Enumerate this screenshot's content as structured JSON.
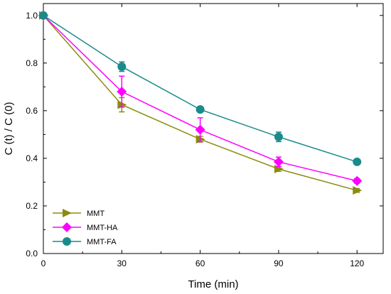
{
  "chart_data": {
    "type": "line",
    "title": "",
    "xlabel": "Time (min)",
    "ylabel": "C (t) / C (0)",
    "x": [
      0,
      30,
      60,
      90,
      120
    ],
    "xlim": [
      0,
      130
    ],
    "ylim": [
      0.0,
      1.05
    ],
    "xticks": [
      0,
      30,
      60,
      90,
      120
    ],
    "yticks": [
      0.0,
      0.2,
      0.4,
      0.6,
      0.8,
      1.0
    ],
    "xtick_labels": [
      "0",
      "30",
      "60",
      "90",
      "120"
    ],
    "ytick_labels": [
      "0.0",
      "0.2",
      "0.4",
      "0.6",
      "0.8",
      "1.0"
    ],
    "grid": false,
    "legend_position": "bottom-left",
    "series": [
      {
        "name": "MMT",
        "color": "#8b8b0f",
        "marker": "triangle-right",
        "values": [
          1.0,
          0.625,
          0.48,
          0.355,
          0.265
        ],
        "errors": [
          0.0,
          0.03,
          0.012,
          0.01,
          0.008
        ]
      },
      {
        "name": "MMT-HA",
        "color": "#ff00ff",
        "marker": "diamond",
        "values": [
          1.0,
          0.68,
          0.52,
          0.385,
          0.305
        ],
        "errors": [
          0.0,
          0.065,
          0.05,
          0.02,
          0.01
        ]
      },
      {
        "name": "MMT-FA",
        "color": "#1a8a8a",
        "marker": "circle",
        "values": [
          1.0,
          0.785,
          0.605,
          0.49,
          0.385
        ],
        "errors": [
          0.0,
          0.02,
          0.01,
          0.02,
          0.01
        ]
      }
    ]
  }
}
